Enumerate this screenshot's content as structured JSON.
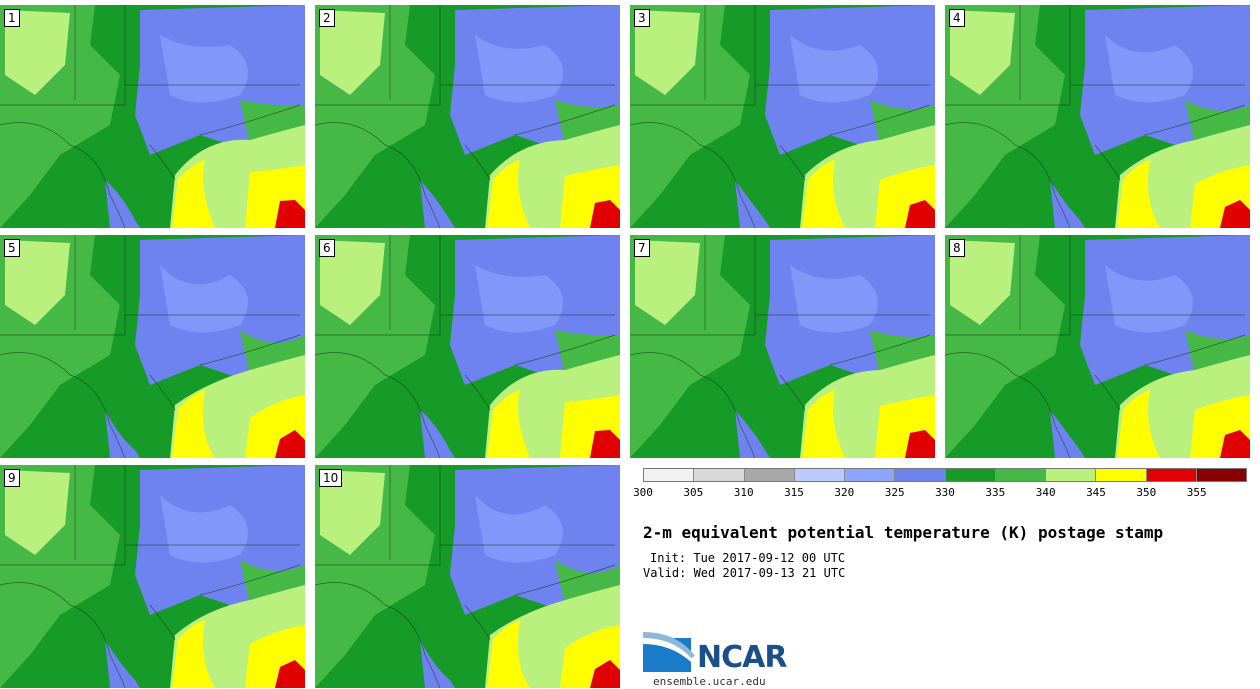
{
  "panels": [
    {
      "label": "1"
    },
    {
      "label": "2"
    },
    {
      "label": "3"
    },
    {
      "label": "4"
    },
    {
      "label": "5"
    },
    {
      "label": "6"
    },
    {
      "label": "7"
    },
    {
      "label": "8"
    },
    {
      "label": "9"
    },
    {
      "label": "10"
    }
  ],
  "colorbar": {
    "colors": [
      "#f2f2f2",
      "#d9d9d9",
      "#a8a8a8",
      "#bccbff",
      "#8ea5ff",
      "#6f83f0",
      "#169a28",
      "#46b846",
      "#b9f07e",
      "#ffff00",
      "#e00000",
      "#880000"
    ],
    "ticks": [
      "300",
      "305",
      "310",
      "315",
      "320",
      "325",
      "330",
      "335",
      "340",
      "345",
      "350",
      "355"
    ]
  },
  "title": "2-m equivalent potential temperature (K) postage stamp",
  "init": "Init: Tue 2017-09-12 00 UTC",
  "valid": "Valid: Wed 2017-09-13 21 UTC",
  "logo": {
    "name": "NCAR",
    "url": "ensemble.ucar.edu"
  }
}
